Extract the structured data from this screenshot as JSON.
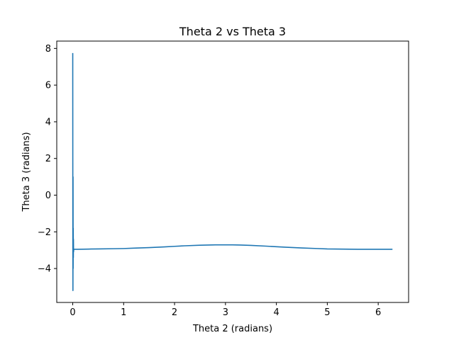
{
  "chart_data": {
    "type": "line",
    "title": "Theta 2 vs Theta 3",
    "xlabel": "Theta 2 (radians)",
    "ylabel": "Theta 3 (radians)",
    "xlim": [
      -0.314,
      6.597
    ],
    "ylim": [
      -5.85,
      8.4
    ],
    "xticks": [
      0,
      1,
      2,
      3,
      4,
      5,
      6
    ],
    "xtick_labels": [
      "0",
      "1",
      "2",
      "3",
      "4",
      "5",
      "6"
    ],
    "yticks": [
      -4,
      -2,
      0,
      2,
      4,
      6,
      8
    ],
    "ytick_labels": [
      "−4",
      "−2",
      "0",
      "2",
      "4",
      "6",
      "8"
    ],
    "grid": false,
    "series": [
      {
        "color": "#1f77b4",
        "x": [
          0.0,
          0.002,
          0.004,
          0.006,
          0.008,
          0.01,
          0.012,
          0.014,
          0.016,
          0.02,
          0.03,
          0.05,
          0.1,
          0.3,
          0.5,
          0.8,
          1.0,
          1.2,
          1.5,
          1.8,
          2.0,
          2.2,
          2.5,
          2.8,
          3.0,
          3.14,
          3.3,
          3.5,
          3.8,
          4.0,
          4.2,
          4.5,
          4.8,
          5.0,
          5.3,
          5.6,
          6.0,
          6.28
        ],
        "y": [
          7.75,
          -1.5,
          -5.2,
          1.0,
          -4.0,
          -1.8,
          -3.4,
          -2.4,
          -3.1,
          -2.95,
          -2.95,
          -2.95,
          -2.95,
          -2.94,
          -2.93,
          -2.92,
          -2.91,
          -2.89,
          -2.86,
          -2.82,
          -2.79,
          -2.76,
          -2.73,
          -2.71,
          -2.71,
          -2.71,
          -2.72,
          -2.74,
          -2.78,
          -2.81,
          -2.84,
          -2.88,
          -2.91,
          -2.93,
          -2.94,
          -2.95,
          -2.95,
          -2.95
        ]
      }
    ]
  }
}
